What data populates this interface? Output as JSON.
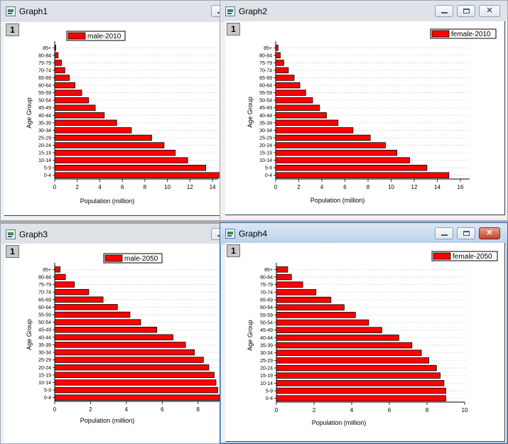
{
  "age_groups": [
    "0-4",
    "5-9",
    "10-14",
    "15-19",
    "20-24",
    "25-29",
    "30-34",
    "35-39",
    "40-44",
    "45-49",
    "50-54",
    "55-59",
    "60-64",
    "65-69",
    "70-74",
    "75-79",
    "80-84",
    "85+"
  ],
  "colors": {
    "bar_fill": "#ff0000",
    "bar_stroke": "#000000",
    "grid": "#b4b4b4"
  },
  "windows": [
    {
      "title": "Graph1",
      "layer_label": "1",
      "legend": "male-2010",
      "xlabel": "Population (million)",
      "ylabel": "Age Group",
      "state": "inactive",
      "buttons_visible": [
        "minimize"
      ]
    },
    {
      "title": "Graph2",
      "layer_label": "1",
      "legend": "female-2010",
      "xlabel": "Population (million)",
      "ylabel": "Age Group",
      "state": "inactive",
      "buttons_visible": [
        "minimize",
        "maximize",
        "close"
      ]
    },
    {
      "title": "Graph3",
      "layer_label": "1",
      "legend": "male-2050",
      "xlabel": "Population (million)",
      "ylabel": "Age Group",
      "state": "inactive",
      "buttons_visible": [
        "minimize"
      ]
    },
    {
      "title": "Graph4",
      "layer_label": "1",
      "legend": "female-2050",
      "xlabel": "Population (million)",
      "ylabel": "Age Group",
      "state": "active",
      "buttons_visible": [
        "minimize",
        "maximize",
        "close"
      ]
    }
  ],
  "chart_data": [
    {
      "type": "bar",
      "orientation": "horizontal",
      "title": "",
      "xlabel": "Population (million)",
      "ylabel": "Age Group",
      "series": [
        {
          "name": "male-2010",
          "values": [
            15.0,
            13.4,
            11.8,
            10.7,
            9.7,
            8.6,
            6.8,
            5.5,
            4.4,
            3.6,
            3.0,
            2.4,
            1.8,
            1.3,
            0.9,
            0.6,
            0.3,
            0.1
          ]
        }
      ],
      "xlim": [
        0,
        14.5
      ],
      "xticks": [
        "0",
        "2",
        "4",
        "6",
        "8",
        "10",
        "12",
        "14"
      ],
      "grid": true,
      "legend_position": "top"
    },
    {
      "type": "bar",
      "orientation": "horizontal",
      "title": "",
      "xlabel": "Population (million)",
      "ylabel": "Age Group",
      "series": [
        {
          "name": "female-2010",
          "values": [
            15.0,
            13.1,
            11.6,
            10.5,
            9.5,
            8.2,
            6.7,
            5.4,
            4.4,
            3.8,
            3.2,
            2.6,
            2.1,
            1.6,
            1.1,
            0.7,
            0.4,
            0.2
          ]
        }
      ],
      "xlim": [
        0,
        16.8
      ],
      "xticks": [
        "0",
        "2",
        "4",
        "6",
        "8",
        "10",
        "12",
        "14",
        "16"
      ],
      "grid": true,
      "legend_position": "top-right"
    },
    {
      "type": "bar",
      "orientation": "horizontal",
      "title": "",
      "xlabel": "Population (million)",
      "ylabel": "Age Group",
      "series": [
        {
          "name": "male-2050",
          "values": [
            9.2,
            9.1,
            9.0,
            8.9,
            8.6,
            8.3,
            7.8,
            7.3,
            6.6,
            5.7,
            4.8,
            4.2,
            3.5,
            2.7,
            1.9,
            1.1,
            0.6,
            0.3
          ]
        }
      ],
      "xlim": [
        0,
        9.2
      ],
      "xticks": [
        "0",
        "2",
        "4",
        "6",
        "8"
      ],
      "grid": true,
      "legend_position": "top"
    },
    {
      "type": "bar",
      "orientation": "horizontal",
      "title": "",
      "xlabel": "Population (million)",
      "ylabel": "Age Group",
      "series": [
        {
          "name": "female-2050",
          "values": [
            9.0,
            9.0,
            8.9,
            8.7,
            8.5,
            8.1,
            7.7,
            7.2,
            6.5,
            5.6,
            4.9,
            4.2,
            3.6,
            2.9,
            2.1,
            1.4,
            0.8,
            0.6
          ]
        }
      ],
      "xlim": [
        0,
        10
      ],
      "xticks": [
        "0",
        "2",
        "4",
        "6",
        "8",
        "10"
      ],
      "grid": true,
      "legend_position": "top-right"
    }
  ]
}
